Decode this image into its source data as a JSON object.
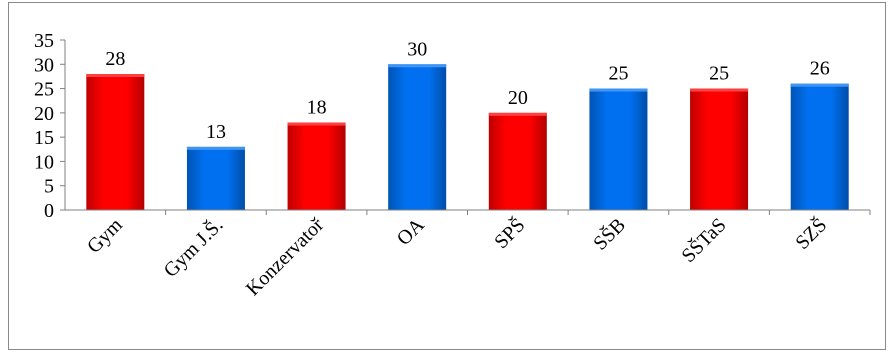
{
  "chart_data": {
    "type": "bar",
    "categories": [
      "Gym",
      "Gym J.Š.",
      "Konzervatoř",
      "OA",
      "SPŠ",
      "SŠB",
      "SŠTaS",
      "SZŠ"
    ],
    "values": [
      28,
      13,
      18,
      30,
      20,
      25,
      25,
      26
    ],
    "bar_colors": [
      "#ff0000",
      "#0070f0",
      "#ff0000",
      "#0070f0",
      "#ff0000",
      "#0070f0",
      "#ff0000",
      "#0070f0"
    ],
    "ylim": [
      0,
      35
    ],
    "yticks": [
      0,
      5,
      10,
      15,
      20,
      25,
      30,
      35
    ],
    "grid": false,
    "legend": "none",
    "title": "",
    "xlabel": "",
    "ylabel": ""
  }
}
